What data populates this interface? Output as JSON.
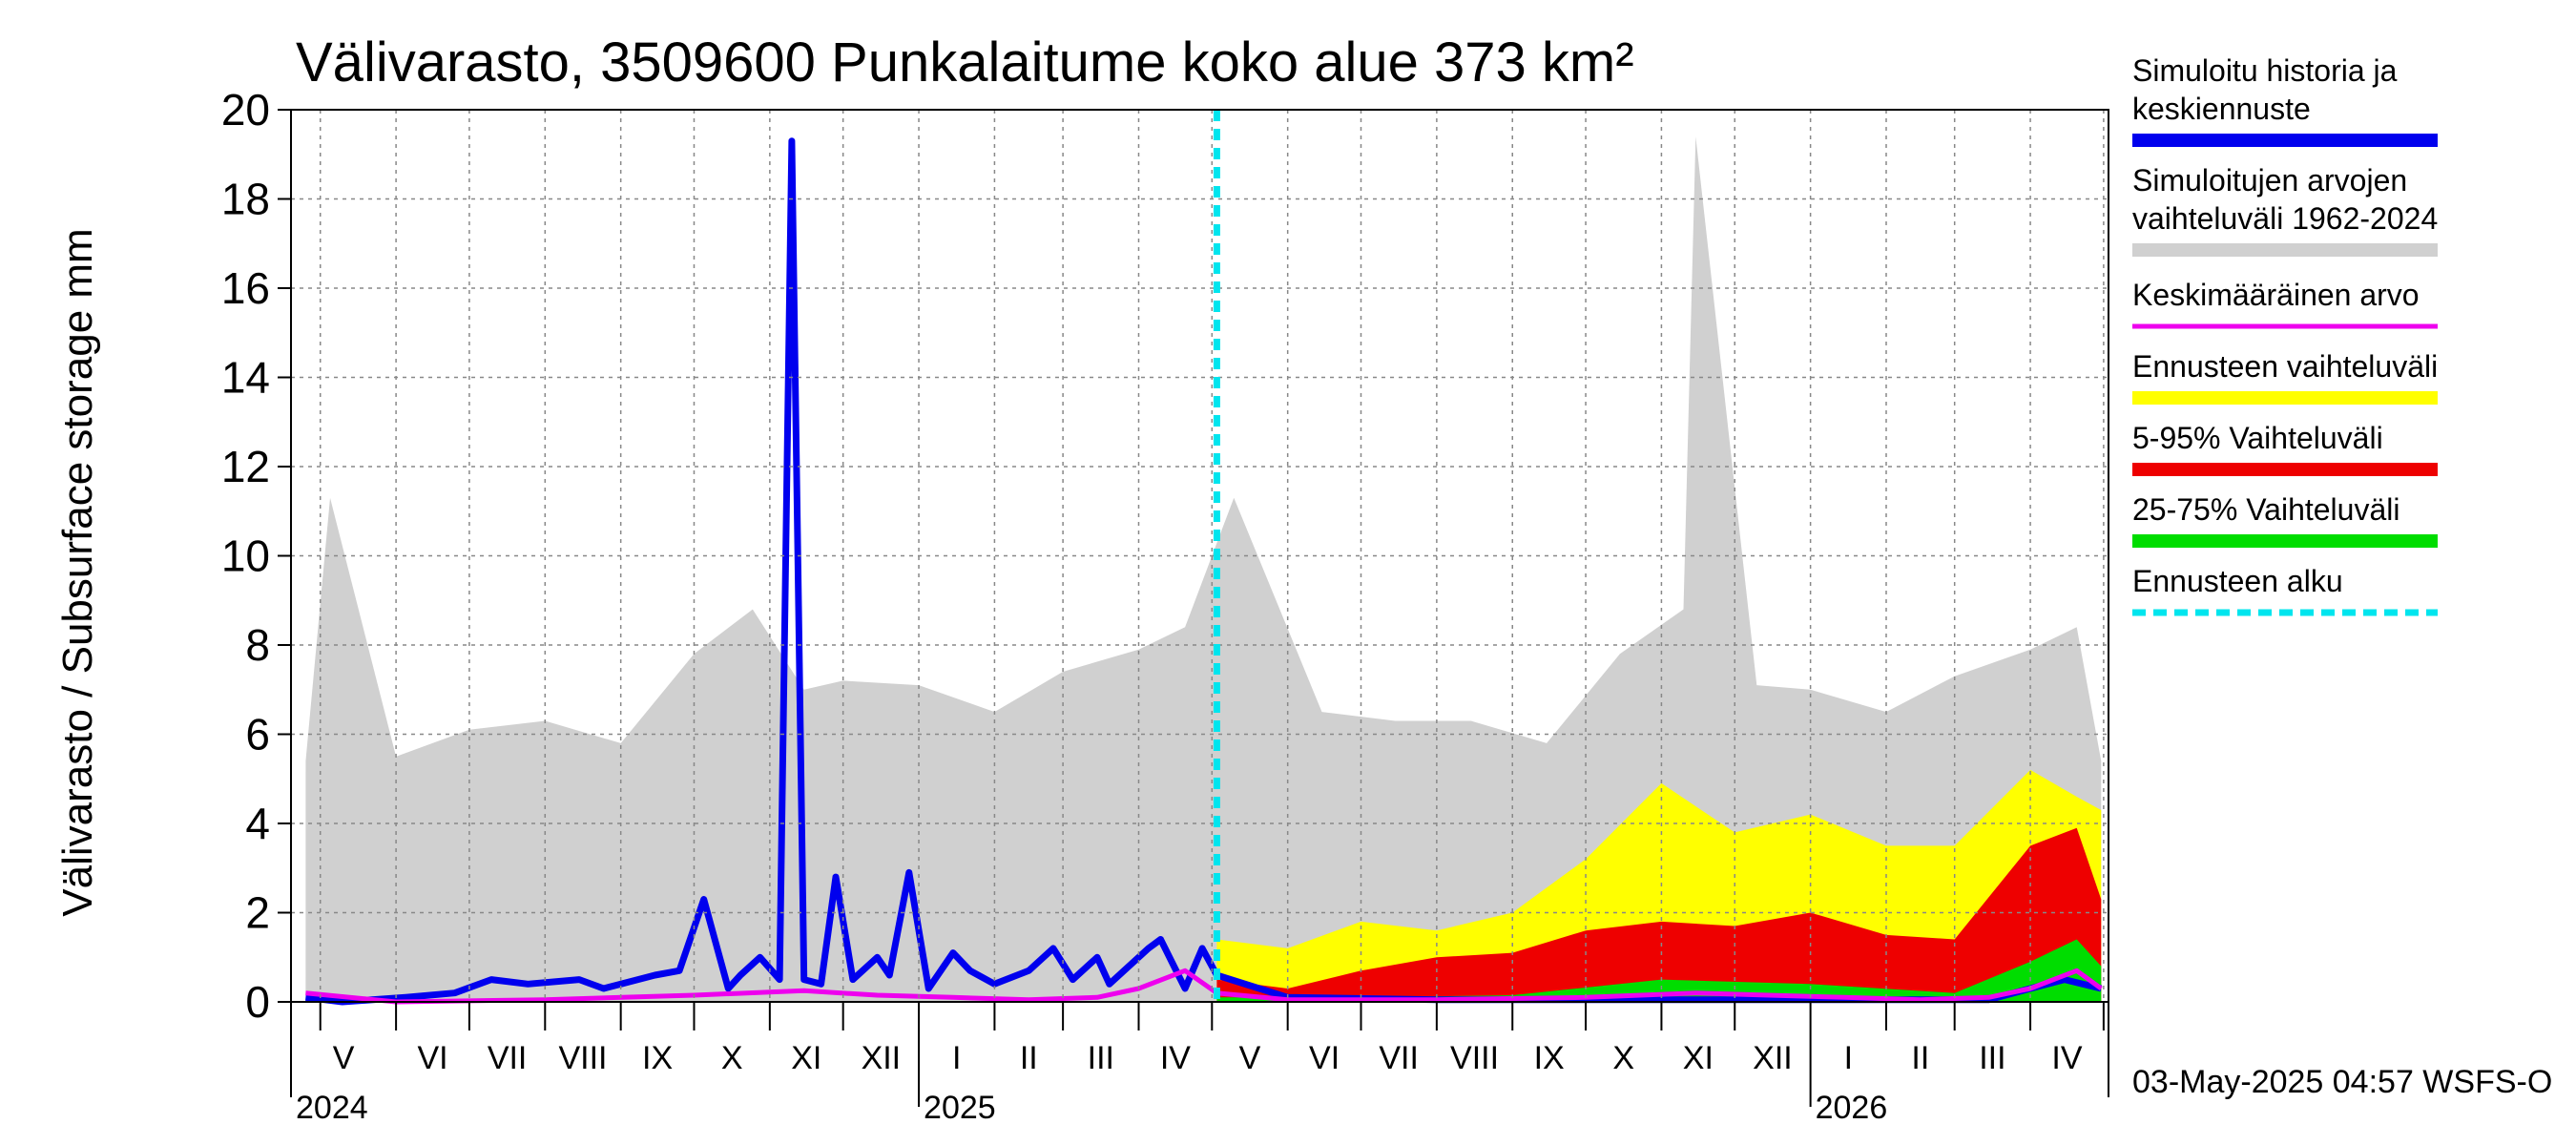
{
  "chart_data": {
    "type": "area",
    "title": "Välivarasto, 3509600 Punkalaitume koko alue 373 km²",
    "ylabel": "Välivarasto / Subsurface storage  mm",
    "xlabel": "",
    "ylim": [
      0,
      20
    ],
    "yticks": [
      "0",
      "2",
      "4",
      "6",
      "8",
      "10",
      "12",
      "14",
      "16",
      "18",
      "20"
    ],
    "grid": true,
    "legend_position": "right",
    "forecast_start": "2025-05-03",
    "month_labels": [
      "V",
      "VI",
      "VII",
      "VIII",
      "IX",
      "X",
      "XI",
      "XII",
      "I",
      "II",
      "III",
      "IV",
      "V",
      "VI",
      "VII",
      "VIII",
      "IX",
      "X",
      "XI",
      "XII",
      "I",
      "II",
      "III",
      "IV"
    ],
    "year_labels": [
      "2024",
      "2025",
      "2026"
    ],
    "footer": "03-May-2025 04:57 WSFS-O",
    "legend": [
      {
        "label": "Simuloitu historia ja keskiennuste",
        "color": "#0000ee",
        "style": "solid"
      },
      {
        "label": "Simuloitujen arvojen vaihteluväli 1962-2024",
        "color": "#d0d0d0",
        "style": "solid"
      },
      {
        "label": "Keskimääräinen arvo",
        "color": "#ee00ee",
        "style": "solid"
      },
      {
        "label": "Ennusteen vaihteluväli",
        "color": "#ffff00",
        "style": "solid"
      },
      {
        "label": "5-95% Vaihteluväli",
        "color": "#ee0000",
        "style": "solid"
      },
      {
        "label": "25-75% Vaihteluväli",
        "color": "#00dd00",
        "style": "solid"
      },
      {
        "label": "Ennusteen alku",
        "color": "#00e5ee",
        "style": "dashed"
      }
    ],
    "series": [
      {
        "name": "Simuloitu historia ja keskiennuste",
        "x": [
          "2024-04-25",
          "2024-05-10",
          "2024-06-05",
          "2024-06-25",
          "2024-07-10",
          "2024-07-25",
          "2024-08-15",
          "2024-08-25",
          "2024-09-15",
          "2024-09-25",
          "2024-10-05",
          "2024-10-15",
          "2024-10-20",
          "2024-10-28",
          "2024-11-05",
          "2024-11-10",
          "2024-11-15",
          "2024-11-22",
          "2024-11-28",
          "2024-12-05",
          "2024-12-15",
          "2024-12-20",
          "2024-12-28",
          "2025-01-05",
          "2025-01-15",
          "2025-01-22",
          "2025-02-01",
          "2025-02-15",
          "2025-02-25",
          "2025-03-05",
          "2025-03-15",
          "2025-03-20",
          "2025-04-05",
          "2025-04-10",
          "2025-04-20",
          "2025-04-27",
          "2025-05-03",
          "2025-06-01",
          "2025-08-01",
          "2025-10-01",
          "2025-12-01",
          "2026-02-01",
          "2026-03-15",
          "2026-04-01",
          "2026-04-15",
          "2026-04-30"
        ],
        "values": [
          0.1,
          0.0,
          0.1,
          0.2,
          0.5,
          0.4,
          0.5,
          0.3,
          0.6,
          0.7,
          2.3,
          0.3,
          0.6,
          1.0,
          0.5,
          19.3,
          0.5,
          0.4,
          2.8,
          0.5,
          1.0,
          0.6,
          2.9,
          0.3,
          1.1,
          0.7,
          0.4,
          0.7,
          1.2,
          0.5,
          1.0,
          0.4,
          1.2,
          1.4,
          0.3,
          1.2,
          0.6,
          0.1,
          0.05,
          0.05,
          0.05,
          0.05,
          0.05,
          0.3,
          0.5,
          0.3
        ]
      },
      {
        "name": "Keskimääräinen arvo",
        "x": [
          "2024-04-25",
          "2024-06-01",
          "2024-08-01",
          "2024-10-01",
          "2024-11-15",
          "2024-12-15",
          "2025-01-15",
          "2025-02-15",
          "2025-03-15",
          "2025-04-01",
          "2025-04-20",
          "2025-05-03",
          "2025-06-01",
          "2025-08-01",
          "2025-10-01",
          "2025-11-15",
          "2025-12-15",
          "2026-01-15",
          "2026-02-15",
          "2026-03-15",
          "2026-04-01",
          "2026-04-20",
          "2026-04-30"
        ],
        "values": [
          0.2,
          0.0,
          0.05,
          0.15,
          0.25,
          0.15,
          0.1,
          0.05,
          0.1,
          0.3,
          0.7,
          0.2,
          0.05,
          0.05,
          0.1,
          0.2,
          0.15,
          0.1,
          0.05,
          0.1,
          0.3,
          0.7,
          0.3
        ]
      },
      {
        "name": "Simuloitujen arvojen vaihteluväli 1962-2024",
        "x": [
          "2024-04-25",
          "2024-05-05",
          "2024-06-01",
          "2024-07-01",
          "2024-08-01",
          "2024-09-01",
          "2024-10-01",
          "2024-10-25",
          "2024-11-15",
          "2024-12-01",
          "2025-01-01",
          "2025-02-01",
          "2025-03-01",
          "2025-04-01",
          "2025-04-20",
          "2025-05-10",
          "2025-06-15",
          "2025-07-15",
          "2025-08-15",
          "2025-09-15",
          "2025-10-15",
          "2025-11-10",
          "2025-11-15",
          "2025-12-10",
          "2026-01-01",
          "2026-02-01",
          "2026-03-01",
          "2026-04-01",
          "2026-04-20",
          "2026-04-30"
        ],
        "values": [
          5.4,
          11.3,
          5.5,
          6.1,
          6.3,
          5.8,
          7.8,
          8.8,
          7.0,
          7.2,
          7.1,
          6.5,
          7.4,
          7.9,
          8.4,
          11.3,
          6.5,
          6.3,
          6.3,
          5.8,
          7.8,
          8.8,
          19.4,
          7.1,
          7.0,
          6.5,
          7.3,
          7.9,
          8.4,
          5.4
        ]
      },
      {
        "name": "Ennusteen vaihteluväli",
        "x": [
          "2025-05-03",
          "2025-06-01",
          "2025-07-01",
          "2025-08-01",
          "2025-09-01",
          "2025-10-01",
          "2025-11-01",
          "2025-12-01",
          "2026-01-01",
          "2026-02-01",
          "2026-03-01",
          "2026-04-01",
          "2026-04-20",
          "2026-04-30"
        ],
        "values": [
          1.4,
          1.2,
          1.8,
          1.6,
          2.0,
          3.2,
          4.9,
          3.8,
          4.2,
          3.5,
          3.5,
          5.2,
          4.6,
          4.3
        ]
      },
      {
        "name": "5-95% Vaihteluväli",
        "x": [
          "2025-05-03",
          "2025-06-01",
          "2025-07-01",
          "2025-08-01",
          "2025-09-01",
          "2025-10-01",
          "2025-11-01",
          "2025-12-01",
          "2026-01-01",
          "2026-02-01",
          "2026-03-01",
          "2026-04-01",
          "2026-04-20",
          "2026-04-30"
        ],
        "values": [
          0.5,
          0.3,
          0.7,
          1.0,
          1.1,
          1.6,
          1.8,
          1.7,
          2.0,
          1.5,
          1.4,
          3.5,
          3.9,
          2.3
        ]
      },
      {
        "name": "25-75% Vaihteluväli",
        "x": [
          "2025-05-03",
          "2025-07-01",
          "2025-09-01",
          "2025-11-01",
          "2026-01-01",
          "2026-03-01",
          "2026-04-01",
          "2026-04-20",
          "2026-04-30"
        ],
        "values": [
          0.1,
          0.1,
          0.15,
          0.5,
          0.4,
          0.2,
          0.9,
          1.4,
          0.8
        ]
      }
    ]
  }
}
